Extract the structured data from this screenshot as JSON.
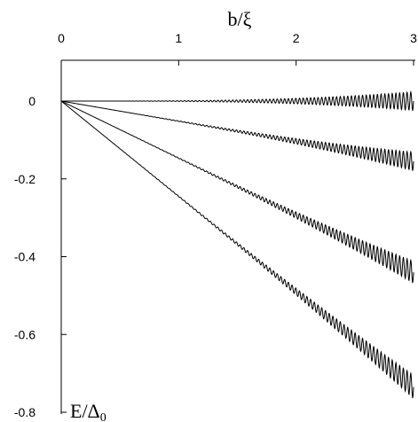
{
  "chart_data": {
    "type": "line",
    "x_axis": {
      "label": "b/ξ",
      "position": "top",
      "range": [
        0,
        3
      ],
      "ticks": [
        {
          "value": 0,
          "label": "0"
        },
        {
          "value": 1,
          "label": "1"
        },
        {
          "value": 2,
          "label": "2"
        },
        {
          "value": 3,
          "label": "3"
        }
      ]
    },
    "y_axis": {
      "label": "E/Δ",
      "label_subscript": "0",
      "position": "left",
      "range": [
        -0.8,
        0.1
      ],
      "ticks": [
        {
          "value": 0,
          "label": "0"
        },
        {
          "value": -0.2,
          "label": "-0.2"
        },
        {
          "value": -0.4,
          "label": "-0.4"
        },
        {
          "value": -0.6,
          "label": "-0.6"
        },
        {
          "value": -0.8,
          "label": "-0.8"
        }
      ]
    },
    "grid": false,
    "legend": "none",
    "series": [
      {
        "x_start": 0,
        "x_end": 3,
        "y_start": 0,
        "y_end": 0.0,
        "oscillation_amplitude_at_end": 0.024
      },
      {
        "x_start": 0,
        "x_end": 3,
        "y_start": 0,
        "y_end": -0.155,
        "oscillation_amplitude_at_end": 0.024
      },
      {
        "x_start": 0,
        "x_end": 3,
        "y_start": 0,
        "y_end": -0.44,
        "oscillation_amplitude_at_end": 0.028
      },
      {
        "x_start": 0,
        "x_end": 3,
        "y_start": 0,
        "y_end": -0.735,
        "oscillation_amplitude_at_end": 0.03
      }
    ]
  }
}
